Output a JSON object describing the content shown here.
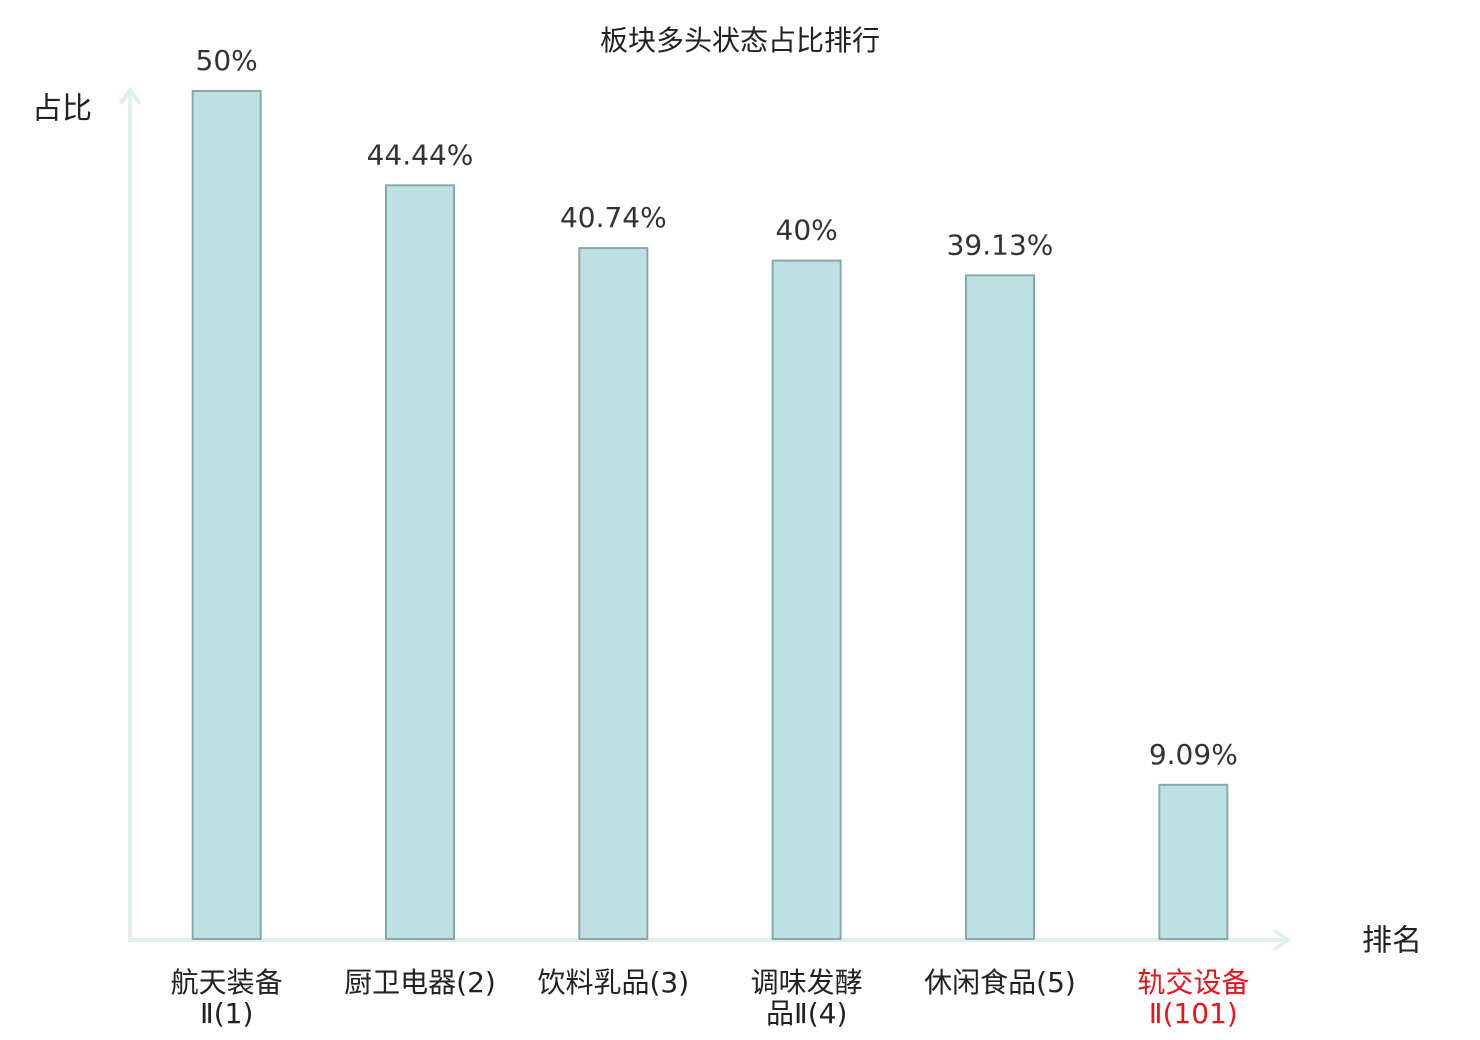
{
  "chart_data": {
    "type": "bar",
    "title": "板块多头状态占比排行",
    "y_label": "占比",
    "x_label": "排名",
    "categories": [
      "航天装备Ⅱ(1)",
      "厨卫电器(2)",
      "饮料乳品(3)",
      "调味发酵品Ⅱ(4)",
      "休闲食品(5)",
      "轨交设备Ⅱ(101)"
    ],
    "values": [
      50,
      44.44,
      40.74,
      40,
      39.13,
      9.09
    ],
    "value_labels": [
      "50%",
      "44.44%",
      "40.74%",
      "40%",
      "39.13%",
      "9.09%"
    ],
    "color": "#bde0e3",
    "edge_color": "#8aa8ac",
    "label_colors": [
      "#222222",
      "#222222",
      "#222222",
      "#222222",
      "#222222",
      "#e8141b"
    ],
    "ylim": [
      0,
      50
    ]
  }
}
